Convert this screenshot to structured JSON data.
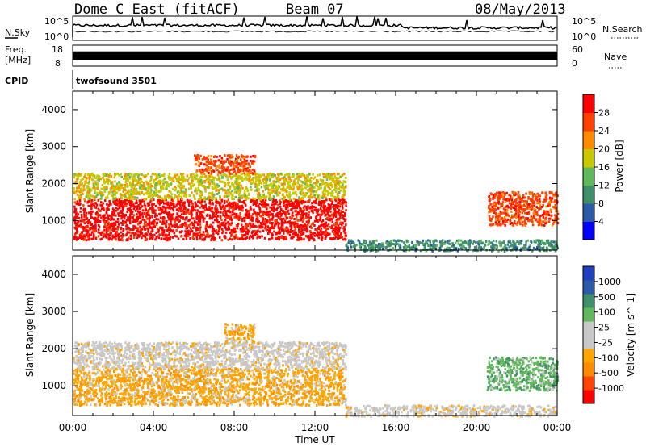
{
  "header": {
    "station": "Dome C East (fitACF)",
    "beam": "Beam 07",
    "date": "08/May/2013"
  },
  "top_panels": {
    "nsky_label": "N.Sky",
    "nsky_tick_hi": "10^5",
    "nsky_tick_lo": "10^0",
    "nsearch_label": "N.Search",
    "nsearch_tick_hi": "10^5",
    "nsearch_tick_lo": "10^0",
    "freq_label": "Freq.",
    "freq_unit": "[MHz]",
    "freq_tick_hi": "18",
    "freq_tick_lo": "8",
    "nave_label": "Nave",
    "nave_tick_hi": "60",
    "nave_tick_lo": "0",
    "cpid_label": "CPID",
    "cpid_value": "twofsound 3501"
  },
  "chart_data": [
    {
      "type": "heatmap",
      "title": "",
      "quantity": "Power",
      "colorbar_label": "Power [dB]",
      "ylabel": "Slant Range [km]",
      "xlabel": "",
      "xlim": [
        "00:00",
        "24:00"
      ],
      "ylim": [
        200,
        4500
      ],
      "yticks": [
        "4000",
        "3000",
        "2000",
        "1000"
      ],
      "colorbar_ticks": [
        "28",
        "24",
        "20",
        "16",
        "12",
        "8",
        "4"
      ],
      "colorbar_colors": [
        "#0000ff",
        "#2a5aa8",
        "#3f8f6a",
        "#5fb85a",
        "#c8c800",
        "#ff8c00",
        "#ff4000",
        "#ff0000"
      ],
      "regions": [
        {
          "t_start": 0.0,
          "t_end": 13.5,
          "r_low": 500,
          "r_high": 1600,
          "dominant": "28"
        },
        {
          "t_start": 0.0,
          "t_end": 13.5,
          "r_low": 1600,
          "r_high": 2300,
          "dominant": "16"
        },
        {
          "t_start": 6.0,
          "t_end": 9.0,
          "r_low": 2300,
          "r_high": 2800,
          "dominant": "24"
        },
        {
          "t_start": 20.5,
          "t_end": 24.0,
          "r_low": 900,
          "r_high": 1800,
          "dominant": "24"
        },
        {
          "t_start": 13.5,
          "t_end": 24.0,
          "r_low": 200,
          "r_high": 500,
          "dominant": "8"
        }
      ]
    },
    {
      "type": "heatmap",
      "title": "",
      "quantity": "Velocity",
      "colorbar_label": "Velocity [m s^-1]",
      "ylabel": "Slant Range [km]",
      "xlabel": "Time UT",
      "xlim": [
        "00:00",
        "24:00"
      ],
      "ylim": [
        200,
        4500
      ],
      "yticks": [
        "4000",
        "3000",
        "2000",
        "1000"
      ],
      "xticks": [
        "00:00",
        "04:00",
        "08:00",
        "12:00",
        "16:00",
        "20:00",
        "00:00"
      ],
      "colorbar_ticks": [
        "1000",
        "500",
        "100",
        "25",
        "-25",
        "-100",
        "-500",
        "-1000"
      ],
      "colorbar_colors": [
        "#ff0000",
        "#ff4500",
        "#ff8c00",
        "#ffa500",
        "#c8c8c8",
        "#c8c8c8",
        "#5fb85a",
        "#3f8f6a",
        "#2a5aa8",
        "#2040c0"
      ],
      "regions": [
        {
          "t_start": 0.0,
          "t_end": 13.5,
          "r_low": 500,
          "r_high": 1500,
          "dominant": "-100"
        },
        {
          "t_start": 0.0,
          "t_end": 13.5,
          "r_low": 1500,
          "r_high": 2200,
          "dominant": "-25"
        },
        {
          "t_start": 7.5,
          "t_end": 9.0,
          "r_low": 2200,
          "r_high": 2700,
          "dominant": "-100"
        },
        {
          "t_start": 20.5,
          "t_end": 24.0,
          "r_low": 900,
          "r_high": 1800,
          "dominant": "100"
        },
        {
          "t_start": 13.5,
          "t_end": 24.0,
          "r_low": 200,
          "r_high": 500,
          "dominant": "25"
        }
      ]
    }
  ]
}
